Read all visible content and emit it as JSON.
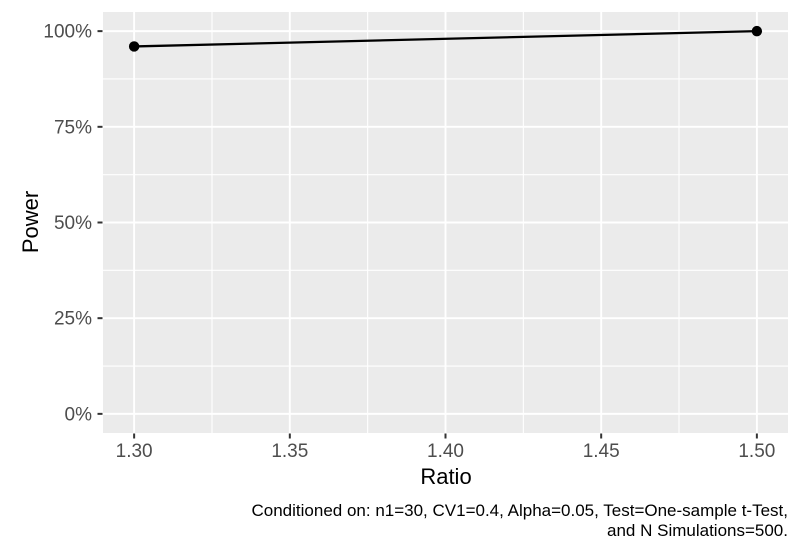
{
  "chart_data": {
    "type": "line",
    "title": "",
    "xlabel": "Ratio",
    "ylabel": "Power",
    "series": [
      {
        "name": "power-curve",
        "points": [
          {
            "x": 1.3,
            "y": 96
          },
          {
            "x": 1.5,
            "y": 100
          }
        ]
      }
    ],
    "x_ticks": [
      {
        "value": 1.3,
        "label": "1.30"
      },
      {
        "value": 1.35,
        "label": "1.35"
      },
      {
        "value": 1.4,
        "label": "1.40"
      },
      {
        "value": 1.45,
        "label": "1.45"
      },
      {
        "value": 1.5,
        "label": "1.50"
      }
    ],
    "y_ticks": [
      {
        "value": 0,
        "label": "0%"
      },
      {
        "value": 25,
        "label": "25%"
      },
      {
        "value": 50,
        "label": "50%"
      },
      {
        "value": 75,
        "label": "75%"
      },
      {
        "value": 100,
        "label": "100%"
      }
    ],
    "x_minor": [
      1.325,
      1.375,
      1.425,
      1.475
    ],
    "y_minor": [
      12.5,
      37.5,
      62.5,
      87.5
    ],
    "xlim": [
      1.29,
      1.51
    ],
    "ylim": [
      -5,
      105
    ],
    "grid": true,
    "legend": "none",
    "caption_lines": [
      "Conditioned on: n1=30, CV1=0.4, Alpha=0.05, Test=One-sample t-Test,",
      "and N Simulations=500."
    ],
    "colors": {
      "page_bg": "#FFFFFF",
      "panel_bg": "#EBEBEB",
      "grid_major": "#FFFFFF",
      "grid_minor": "#FFFFFF",
      "line": "#000000",
      "point": "#000000",
      "axis_text": "#4D4D4D",
      "axis_title": "#000000",
      "tick_mark": "#333333",
      "caption": "#000000"
    }
  }
}
